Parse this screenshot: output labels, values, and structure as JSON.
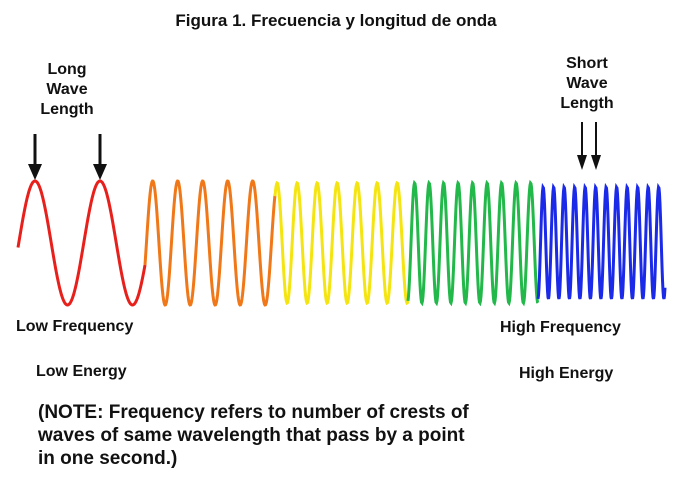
{
  "title": "Figura 1. Frecuencia y longitud de onda",
  "long_wave_label": [
    "Long",
    "Wave",
    "Length"
  ],
  "short_wave_label": [
    "Short",
    "Wave",
    "Length"
  ],
  "low_frequency": "Low Frequency",
  "low_energy": "Low Energy",
  "high_frequency": "High Frequency",
  "high_energy": "High Energy",
  "note": [
    "(NOTE: Frequency refers to number of crests of",
    "waves of same wavelength that pass by a point",
    "in one second.)"
  ]
}
